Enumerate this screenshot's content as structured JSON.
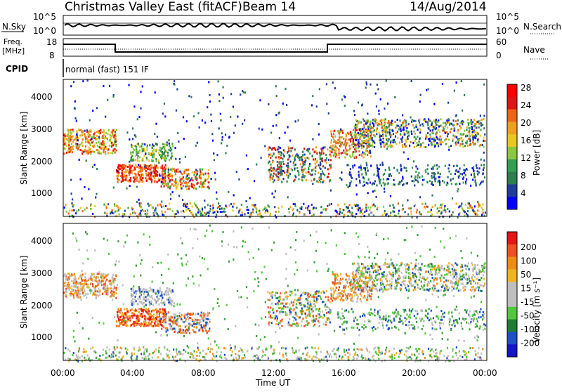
{
  "header": {
    "title": "Christmas Valley East (fitACF)",
    "beam": "Beam 14",
    "date": "14/Aug/2014"
  },
  "noise_panel": {
    "left_label": "N.Sky",
    "right_label": "N.Search",
    "left_ticks": [
      "10^5",
      "10^0"
    ],
    "right_ticks": [
      "10^5",
      "10^0"
    ]
  },
  "freq_panel": {
    "left_label_1": "Freq.",
    "left_label_2": "[MHz]",
    "right_label": "Nave",
    "left_ticks": [
      "18",
      "8"
    ],
    "right_ticks": [
      "60",
      "0"
    ]
  },
  "cpid": {
    "label": "CPID",
    "value": "normal (fast) 151 IF"
  },
  "colors": {
    "power_scale": [
      "#0000ff",
      "#1e3ca0",
      "#2e7d4f",
      "#32a050",
      "#8cc83c",
      "#e6c81e",
      "#f0a01e",
      "#f06414",
      "#e01414",
      "#ff0000"
    ],
    "velocity_scale": [
      "#1414c8",
      "#1e50c8",
      "#1e7d32",
      "#50c83c",
      "#bebebe",
      "#bebebe",
      "#f0b41e",
      "#f08c14",
      "#f0501e",
      "#e61414"
    ]
  },
  "chart_data": [
    {
      "type": "heatmap",
      "name": "power",
      "ylabel": "Slant Range [km]",
      "y_ticks": [
        "1000",
        "2000",
        "3000",
        "4000"
      ],
      "ylim": [
        200,
        4500
      ],
      "colorbar_label": "Power [dB]",
      "colorbar_ticks": [
        "4",
        "8",
        "12",
        "16",
        "20",
        "24",
        "28"
      ]
    },
    {
      "type": "heatmap",
      "name": "velocity",
      "ylabel": "Slant Range [km]",
      "y_ticks": [
        "1000",
        "2000",
        "3000",
        "4000"
      ],
      "ylim": [
        200,
        4500
      ],
      "colorbar_label": "Velocity [m s⁻¹]",
      "colorbar_ticks": [
        "200",
        "100",
        "50",
        "15",
        "-15",
        "-50",
        "-100",
        "-200"
      ]
    }
  ],
  "x_axis": {
    "ticks": [
      "00:00",
      "04:00",
      "08:00",
      "12:00",
      "16:00",
      "20:00",
      "00:00"
    ],
    "label": "Time UT"
  }
}
